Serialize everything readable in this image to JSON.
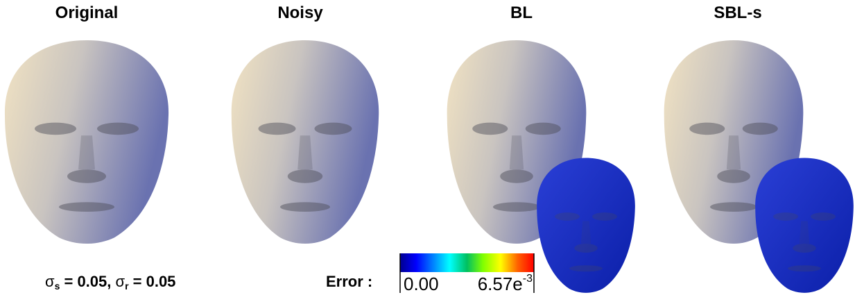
{
  "panels": [
    {
      "title": "Original"
    },
    {
      "title": "Noisy"
    },
    {
      "title": "BL"
    },
    {
      "title": "SBL-s"
    }
  ],
  "params": [
    {
      "symbol": "σ",
      "subscript": "s",
      "value": " = 0.05, "
    },
    {
      "symbol": "σ",
      "subscript": "r",
      "value": " = 0.05"
    }
  ],
  "error_scale": {
    "label": "Error :",
    "min": "0.00",
    "max": {
      "mantissa": "6.57e",
      "exponent": "-3"
    }
  }
}
